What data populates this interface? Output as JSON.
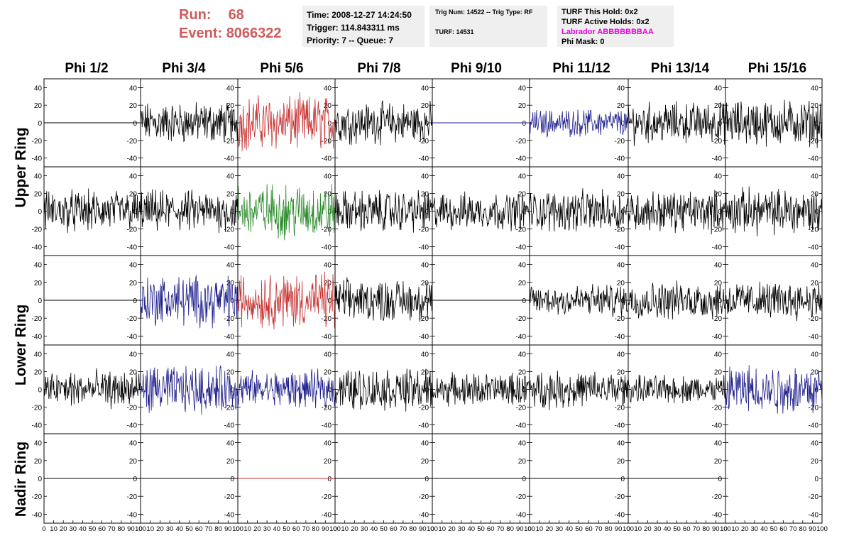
{
  "run": {
    "run_label": "Run:",
    "run_value": "68",
    "event_label": "Event:",
    "event_value": "8066322"
  },
  "time_box": {
    "time": "Time: 2008-12-27 14:24:50",
    "trigger": "Trigger: 114.843311 ms",
    "priority": "Priority: 7 -- Queue: 7"
  },
  "trig_box": {
    "trig": "Trig Num: 14522 -- Trig Type: RF",
    "turf": "TURF: 14531"
  },
  "turf_box": {
    "this_hold": "TURF This Hold: 0x2",
    "active_holds": "TURF Active Holds: 0x2",
    "labrador": "Labrador ABBBBBBBAA",
    "phi_mask": "Phi Mask: 0"
  },
  "phi_labels": [
    "Phi 1/2",
    "Phi 3/4",
    "Phi 5/6",
    "Phi 7/8",
    "Phi 9/10",
    "Phi 11/12",
    "Phi 13/14",
    "Phi 15/16"
  ],
  "ring_labels": {
    "upper": "Upper Ring",
    "lower": "Lower Ring",
    "nadir": "Nadir Ring"
  },
  "colors": {
    "black": "#000000",
    "blue": "#1f1f8c",
    "red": "#c83232",
    "green": "#2a8a2a"
  },
  "chart_data": {
    "type": "line",
    "rows": 5,
    "cols": 8,
    "ylim": [
      -50,
      50
    ],
    "xlim": [
      0,
      100
    ],
    "ytick_labels": [
      "40",
      "20",
      "0",
      "-20",
      "-40"
    ],
    "xtick_labels": [
      "0",
      "10",
      "20",
      "30",
      "40",
      "50",
      "60",
      "70",
      "80",
      "90",
      "100"
    ],
    "panels": [
      [
        {
          "color": "black",
          "mode": "flat"
        },
        {
          "color": "black",
          "mode": "noise",
          "amp": 18
        },
        {
          "color": "red",
          "mode": "noise",
          "amp": 24
        },
        {
          "color": "black",
          "mode": "noise",
          "amp": 18
        },
        {
          "color": "blue",
          "mode": "flat"
        },
        {
          "color": "blue",
          "mode": "noise",
          "amp": 12
        },
        {
          "color": "black",
          "mode": "noise",
          "amp": 18
        },
        {
          "color": "black",
          "mode": "noise",
          "amp": 20
        }
      ],
      [
        {
          "color": "black",
          "mode": "noise",
          "amp": 18
        },
        {
          "color": "black",
          "mode": "noise",
          "amp": 18
        },
        {
          "color": "green",
          "mode": "noise",
          "amp": 24
        },
        {
          "color": "black",
          "mode": "noise",
          "amp": 18
        },
        {
          "color": "black",
          "mode": "noise",
          "amp": 16
        },
        {
          "color": "black",
          "mode": "noise",
          "amp": 18
        },
        {
          "color": "black",
          "mode": "noise",
          "amp": 18
        },
        {
          "color": "black",
          "mode": "noise",
          "amp": 20
        }
      ],
      [
        {
          "color": "black",
          "mode": "flat"
        },
        {
          "color": "blue",
          "mode": "noise",
          "amp": 22
        },
        {
          "color": "red",
          "mode": "noise",
          "amp": 24
        },
        {
          "color": "black",
          "mode": "noise",
          "amp": 18
        },
        {
          "color": "black",
          "mode": "flat"
        },
        {
          "color": "black",
          "mode": "noise",
          "amp": 14
        },
        {
          "color": "black",
          "mode": "noise",
          "amp": 16
        },
        {
          "color": "black",
          "mode": "noise",
          "amp": 16
        }
      ],
      [
        {
          "color": "black",
          "mode": "noise",
          "amp": 16
        },
        {
          "color": "blue",
          "mode": "noise",
          "amp": 20
        },
        {
          "color": "blue",
          "mode": "noise",
          "amp": 16
        },
        {
          "color": "black",
          "mode": "noise",
          "amp": 18
        },
        {
          "color": "black",
          "mode": "noise",
          "amp": 14
        },
        {
          "color": "black",
          "mode": "noise",
          "amp": 16
        },
        {
          "color": "black",
          "mode": "noise",
          "amp": 12
        },
        {
          "color": "blue",
          "mode": "noise",
          "amp": 22
        }
      ],
      [
        {
          "color": "black",
          "mode": "flat"
        },
        {
          "color": "black",
          "mode": "flat"
        },
        {
          "color": "red",
          "mode": "flat"
        },
        {
          "color": "black",
          "mode": "flat"
        },
        {
          "color": "black",
          "mode": "flat"
        },
        {
          "color": "black",
          "mode": "flat"
        },
        {
          "color": "black",
          "mode": "flat"
        },
        {
          "color": "black",
          "mode": "none"
        }
      ]
    ]
  }
}
